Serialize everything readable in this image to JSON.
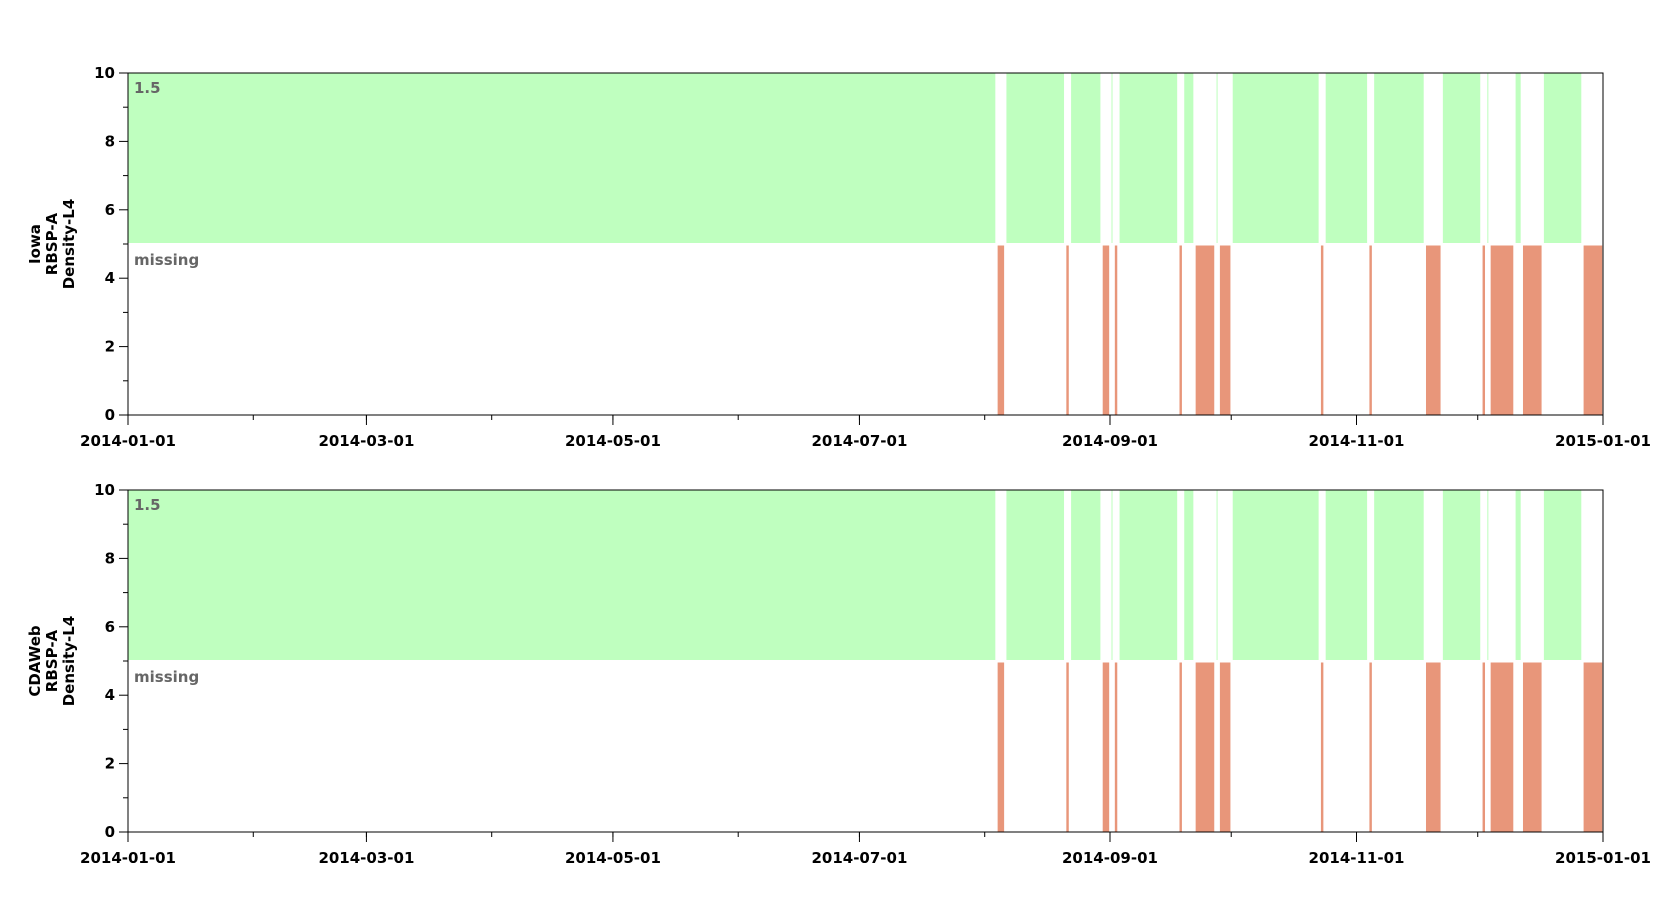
{
  "colors": {
    "present": "#bfffbf",
    "missing": "#e8967a",
    "axis": "#000000",
    "annotation": "#666666"
  },
  "chart_data": [
    {
      "type": "bar",
      "name": "iowa",
      "ylabel": [
        "Iowa",
        "RBSP-A",
        "Density-L4"
      ],
      "ylim": [
        0,
        10
      ],
      "yticks": [
        0,
        2,
        4,
        6,
        8,
        10
      ],
      "xlim": [
        "2014-01-01",
        "2015-01-01"
      ],
      "xticks": [
        "2014-01-01",
        "2014-03-01",
        "2014-05-01",
        "2014-07-01",
        "2014-09-01",
        "2014-11-01",
        "2015-01-01"
      ],
      "annotations": {
        "upper": "1.5",
        "lower": "missing"
      },
      "present_band": [
        5,
        10
      ],
      "missing_band": [
        0,
        5
      ],
      "missing_intervals": [
        [
          "2014-08-04",
          "2014-08-06"
        ],
        [
          "2014-08-21",
          "2014-08-22"
        ],
        [
          "2014-08-30",
          "2014-09-01"
        ],
        [
          "2014-09-02",
          "2014-09-03"
        ],
        [
          "2014-09-18",
          "2014-09-19"
        ],
        [
          "2014-09-22",
          "2014-09-27"
        ],
        [
          "2014-09-28",
          "2014-10-01"
        ],
        [
          "2014-10-23",
          "2014-10-24"
        ],
        [
          "2014-11-04",
          "2014-11-05"
        ],
        [
          "2014-11-18",
          "2014-11-22"
        ],
        [
          "2014-12-02",
          "2014-12-03"
        ],
        [
          "2014-12-04",
          "2014-12-10"
        ],
        [
          "2014-12-12",
          "2014-12-17"
        ],
        [
          "2014-12-27",
          "2015-01-01"
        ]
      ]
    },
    {
      "type": "bar",
      "name": "cdaweb",
      "ylabel": [
        "CDAWeb",
        "RBSP-A",
        "Density-L4"
      ],
      "ylim": [
        0,
        10
      ],
      "yticks": [
        0,
        2,
        4,
        6,
        8,
        10
      ],
      "xlim": [
        "2014-01-01",
        "2015-01-01"
      ],
      "xticks": [
        "2014-01-01",
        "2014-03-01",
        "2014-05-01",
        "2014-07-01",
        "2014-09-01",
        "2014-11-01",
        "2015-01-01"
      ],
      "annotations": {
        "upper": "1.5",
        "lower": "missing"
      },
      "present_band": [
        5,
        10
      ],
      "missing_band": [
        0,
        5
      ],
      "missing_intervals": [
        [
          "2014-08-04",
          "2014-08-06"
        ],
        [
          "2014-08-21",
          "2014-08-22"
        ],
        [
          "2014-08-30",
          "2014-09-01"
        ],
        [
          "2014-09-02",
          "2014-09-03"
        ],
        [
          "2014-09-18",
          "2014-09-19"
        ],
        [
          "2014-09-22",
          "2014-09-27"
        ],
        [
          "2014-09-28",
          "2014-10-01"
        ],
        [
          "2014-10-23",
          "2014-10-24"
        ],
        [
          "2014-11-04",
          "2014-11-05"
        ],
        [
          "2014-11-18",
          "2014-11-22"
        ],
        [
          "2014-12-02",
          "2014-12-03"
        ],
        [
          "2014-12-04",
          "2014-12-10"
        ],
        [
          "2014-12-12",
          "2014-12-17"
        ],
        [
          "2014-12-27",
          "2015-01-01"
        ]
      ]
    }
  ]
}
